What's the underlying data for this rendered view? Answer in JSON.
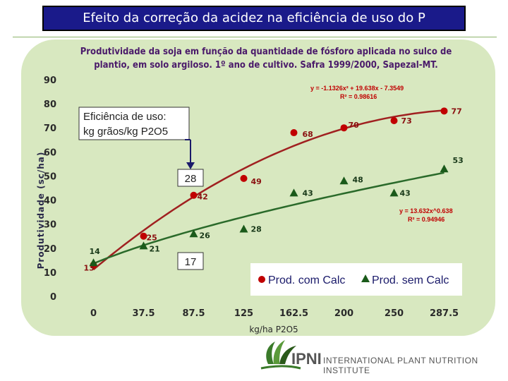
{
  "slide": {
    "title": "Efeito da correção da acidez na eficiência de uso do P"
  },
  "chart_data": {
    "type": "line",
    "title": "Produtividade da soja em função da quantidade de fósforo aplicada no sulco de plantio, em solo argiloso. 1º ano de cultivo. Safra 1999/2000, Sapezal-MT.",
    "xlabel": "kg/ha P2O5",
    "ylabel": "Produtividade (sc/ha)",
    "categories": [
      "0",
      "37.5",
      "87.5",
      "125",
      "162.5",
      "200",
      "250",
      "287.5"
    ],
    "x": [
      0,
      37.5,
      87.5,
      125,
      162.5,
      200,
      250,
      287.5
    ],
    "ylim": [
      0,
      90
    ],
    "yticks": [
      0,
      10,
      20,
      30,
      40,
      50,
      60,
      70,
      80,
      90
    ],
    "grid": false,
    "legend_placement": "bottom-right",
    "series": [
      {
        "name": "Prod. com Calc",
        "marker": "circle",
        "color": "#c00000",
        "line_color": "#a02020",
        "values": [
          13,
          25,
          42,
          49,
          68,
          70,
          73,
          77
        ],
        "labels": [
          "13",
          "25",
          "42",
          "49",
          "68",
          "70",
          "73",
          "77"
        ],
        "equation": "y = -1.1326x² + 19.638x - 7.3549",
        "r2": "R² = 0.98616",
        "trend": {
          "a": -1.1326,
          "b": 19.638,
          "c": -7.3549
        }
      },
      {
        "name": "Prod. sem Calc",
        "marker": "triangle",
        "color": "#1a5a1a",
        "line_color": "#2a6a2a",
        "values": [
          14,
          21,
          26,
          28,
          43,
          48,
          43,
          53
        ],
        "labels": [
          "14",
          "21",
          "26",
          "28",
          "43",
          "48",
          "43",
          "53"
        ],
        "equation": "y = 13.632x^0.638",
        "r2": "R² = 0.94946",
        "trend": {
          "k": 13.632,
          "p": 0.638
        }
      }
    ],
    "annotations": [
      {
        "text_line1": "Eficiência de uso:",
        "text_line2": "kg grãos/kg P2O5"
      },
      {
        "text": "28"
      },
      {
        "text": "17"
      }
    ]
  },
  "footer": {
    "brand": "IPNI",
    "subtitle": "INTERNATIONAL PLANT NUTRITION INSTITUTE",
    "logo_icon": "ipni-leaf-logo"
  }
}
